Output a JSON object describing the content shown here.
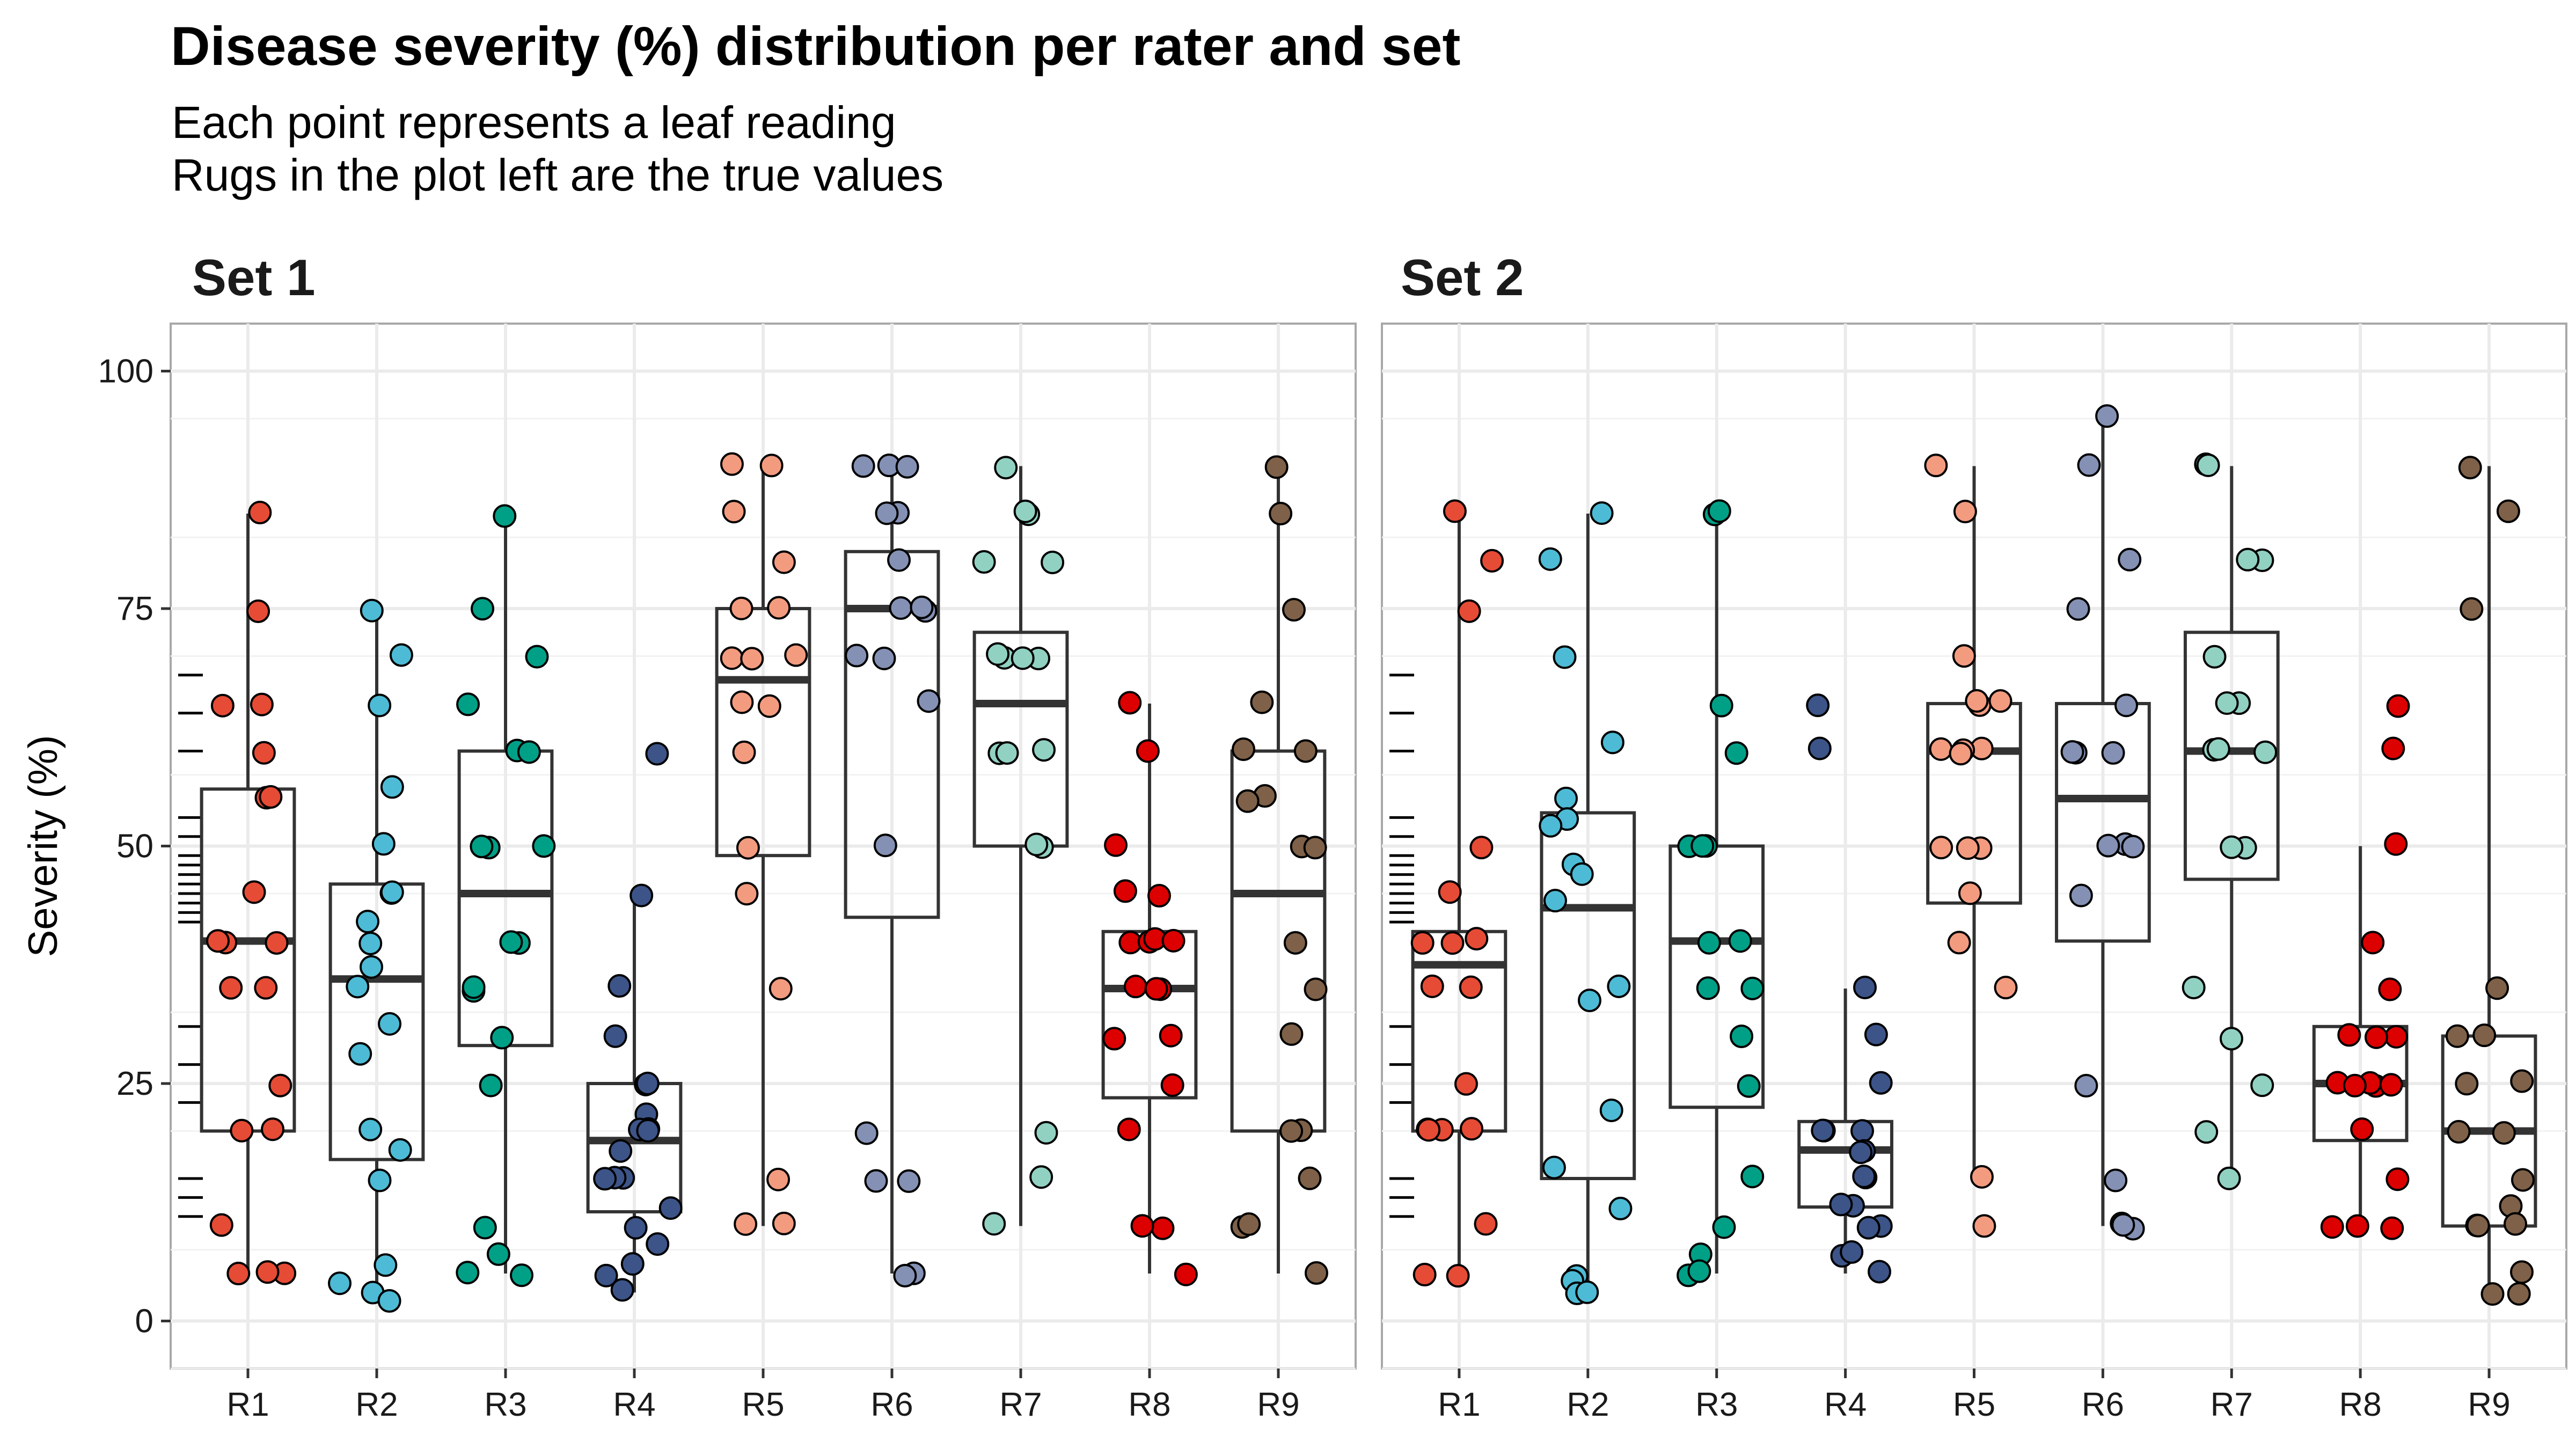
{
  "title": "Disease severity (%) distribution per rater and set",
  "subtitle_lines": [
    "Each point represents a leaf reading",
    "Rugs in the plot left are the true values"
  ],
  "chart_data": {
    "type": "boxplot+jitter",
    "ylabel": "Severity (%)",
    "xlabel": "",
    "ylim": [
      -5,
      105
    ],
    "yticks": [
      0,
      25,
      50,
      75,
      100
    ],
    "grid": true,
    "categories": [
      "R1",
      "R2",
      "R3",
      "R4",
      "R5",
      "R6",
      "R7",
      "R8",
      "R9"
    ],
    "colors": [
      "#E64B35",
      "#4DBBD5",
      "#00A087",
      "#3C5488",
      "#F39B7F",
      "#8491B4",
      "#91D1C2",
      "#DC0000",
      "#7E6148"
    ],
    "rug_values": [
      11,
      13,
      15,
      23,
      27,
      31,
      42,
      43,
      44,
      45,
      46,
      47,
      48,
      49,
      51,
      53,
      60,
      64,
      68
    ],
    "panels": [
      {
        "label": "Set 1",
        "boxes": [
          {
            "rater": "R1",
            "whisker_low": 5,
            "q1": 20,
            "median": 40,
            "q3": 56,
            "whisker_high": 85
          },
          {
            "rater": "R2",
            "whisker_low": 2,
            "q1": 17,
            "median": 36,
            "q3": 46,
            "whisker_high": 75
          },
          {
            "rater": "R3",
            "whisker_low": 5,
            "q1": 29,
            "median": 45,
            "q3": 60,
            "whisker_high": 85
          },
          {
            "rater": "R4",
            "whisker_low": 3,
            "q1": 11.5,
            "median": 19,
            "q3": 25,
            "whisker_high": 45
          },
          {
            "rater": "R5",
            "whisker_low": 10,
            "q1": 49,
            "median": 67.5,
            "q3": 75,
            "whisker_high": 90
          },
          {
            "rater": "R6",
            "whisker_low": 5,
            "q1": 42.5,
            "median": 75,
            "q3": 81,
            "whisker_high": 90
          },
          {
            "rater": "R7",
            "whisker_low": 10,
            "q1": 50,
            "median": 65,
            "q3": 72.5,
            "whisker_high": 90
          },
          {
            "rater": "R8",
            "whisker_low": 5,
            "q1": 23.5,
            "median": 35,
            "q3": 41,
            "whisker_high": 65
          },
          {
            "rater": "R9",
            "whisker_low": 5,
            "q1": 20,
            "median": 45,
            "q3": 60,
            "whisker_high": 90
          }
        ],
        "points": [
          [
            85,
            75,
            65,
            65,
            60,
            55,
            55,
            45,
            40,
            40,
            40,
            35,
            35,
            25,
            20,
            20,
            10,
            5,
            5,
            5
          ],
          [
            75,
            70,
            65,
            56,
            50,
            45,
            45,
            42,
            40,
            37,
            35,
            31,
            28,
            20,
            18,
            15,
            6,
            4,
            3,
            2
          ],
          [
            85,
            75,
            70,
            65,
            60,
            60,
            50,
            50,
            50,
            40,
            40,
            35,
            35,
            30,
            25,
            10,
            7,
            5,
            5
          ],
          [
            60,
            45,
            35,
            30,
            25,
            25,
            22,
            20,
            20,
            20,
            18,
            15,
            15,
            15,
            12,
            10,
            8,
            6,
            5,
            3
          ],
          [
            90,
            90,
            85,
            80,
            75,
            75,
            70,
            70,
            70,
            65,
            65,
            60,
            50,
            45,
            35,
            15,
            10,
            10
          ],
          [
            90,
            90,
            90,
            85,
            85,
            80,
            75,
            75,
            75,
            70,
            70,
            65,
            50,
            20,
            15,
            15,
            5,
            5
          ],
          [
            90,
            85,
            85,
            80,
            80,
            70,
            70,
            70,
            70,
            60,
            60,
            60,
            50,
            50,
            20,
            15,
            10
          ],
          [
            65,
            60,
            50,
            45,
            45,
            40,
            40,
            40,
            40,
            35,
            35,
            35,
            30,
            30,
            25,
            20,
            10,
            10,
            5
          ],
          [
            90,
            85,
            75,
            65,
            60,
            60,
            55,
            55,
            50,
            50,
            40,
            35,
            30,
            20,
            20,
            15,
            10,
            10,
            5
          ]
        ]
      },
      {
        "label": "Set 2",
        "boxes": [
          {
            "rater": "R1",
            "whisker_low": 5,
            "q1": 20,
            "median": 37.5,
            "q3": 41,
            "whisker_high": 85
          },
          {
            "rater": "R2",
            "whisker_low": 3,
            "q1": 15,
            "median": 43.5,
            "q3": 53.5,
            "whisker_high": 85
          },
          {
            "rater": "R3",
            "whisker_low": 5,
            "q1": 22.5,
            "median": 40,
            "q3": 50,
            "whisker_high": 85
          },
          {
            "rater": "R4",
            "whisker_low": 5,
            "q1": 12,
            "median": 18,
            "q3": 21,
            "whisker_high": 35
          },
          {
            "rater": "R5",
            "whisker_low": 15,
            "q1": 44,
            "median": 60,
            "q3": 65,
            "whisker_high": 90
          },
          {
            "rater": "R6",
            "whisker_low": 10,
            "q1": 40,
            "median": 55,
            "q3": 65,
            "whisker_high": 95
          },
          {
            "rater": "R7",
            "whisker_low": 15,
            "q1": 46.5,
            "median": 60,
            "q3": 72.5,
            "whisker_high": 90
          },
          {
            "rater": "R8",
            "whisker_low": 10,
            "q1": 19,
            "median": 25,
            "q3": 31,
            "whisker_high": 50
          },
          {
            "rater": "R9",
            "whisker_low": 3,
            "q1": 10,
            "median": 20,
            "q3": 30,
            "whisker_high": 90
          }
        ],
        "points": [
          [
            85,
            80,
            75,
            50,
            45,
            40,
            40,
            40,
            35,
            35,
            25,
            20,
            20,
            20,
            20,
            10,
            5,
            5
          ],
          [
            85,
            80,
            70,
            61,
            55,
            53,
            52,
            48,
            47,
            44,
            35,
            34,
            22,
            16,
            12,
            5,
            4,
            3,
            3
          ],
          [
            85,
            85,
            65,
            60,
            50,
            50,
            50,
            40,
            40,
            35,
            35,
            30,
            25,
            15,
            10,
            7,
            5,
            5
          ],
          [
            65,
            60,
            35,
            30,
            25,
            20,
            20,
            20,
            18,
            18,
            15,
            15,
            12,
            12,
            10,
            10,
            7,
            7,
            5
          ],
          [
            90,
            85,
            70,
            65,
            65,
            65,
            60,
            60,
            60,
            60,
            50,
            50,
            50,
            45,
            40,
            35,
            15,
            10
          ],
          [
            95,
            90,
            80,
            75,
            65,
            60,
            60,
            60,
            50,
            50,
            50,
            45,
            25,
            15,
            10,
            10,
            10
          ],
          [
            90,
            90,
            80,
            80,
            70,
            65,
            65,
            60,
            60,
            60,
            50,
            50,
            35,
            30,
            25,
            20,
            15
          ],
          [
            65,
            60,
            50,
            40,
            35,
            30,
            30,
            30,
            25,
            25,
            25,
            25,
            25,
            20,
            15,
            10,
            10,
            10
          ],
          [
            90,
            85,
            75,
            35,
            30,
            30,
            25,
            25,
            20,
            20,
            15,
            12,
            10,
            10,
            10,
            5,
            3,
            3
          ]
        ]
      }
    ]
  }
}
